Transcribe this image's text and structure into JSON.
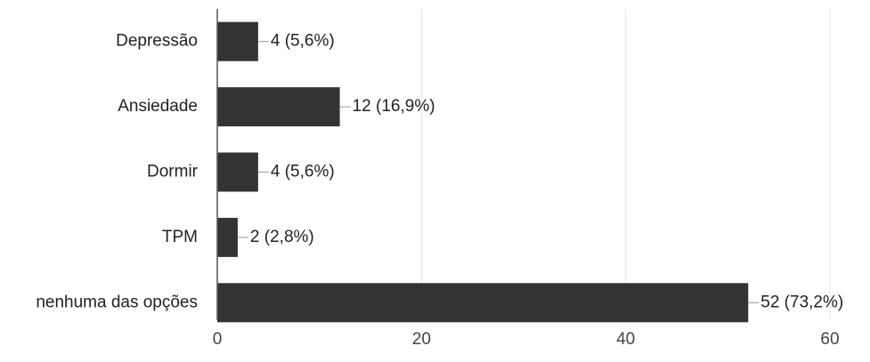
{
  "chart_data": {
    "type": "bar",
    "orientation": "horizontal",
    "categories": [
      "Depressão",
      "Ansiedade",
      "Dormir",
      "TPM",
      "nenhuma das opções"
    ],
    "values": [
      4,
      12,
      4,
      2,
      52
    ],
    "data_labels": [
      "4 (5,6%)",
      "12 (16,9%)",
      "4 (5,6%)",
      "2 (2,8%)",
      "52 (73,2%)"
    ],
    "x_ticks": [
      0,
      20,
      40,
      60
    ],
    "xlim": [
      0,
      60
    ],
    "grid": true,
    "legend": "none",
    "bar_color": "#333333",
    "grid_color": "#e6e6e6",
    "axis_color": "#555555",
    "title": "",
    "xlabel": "",
    "ylabel": ""
  }
}
